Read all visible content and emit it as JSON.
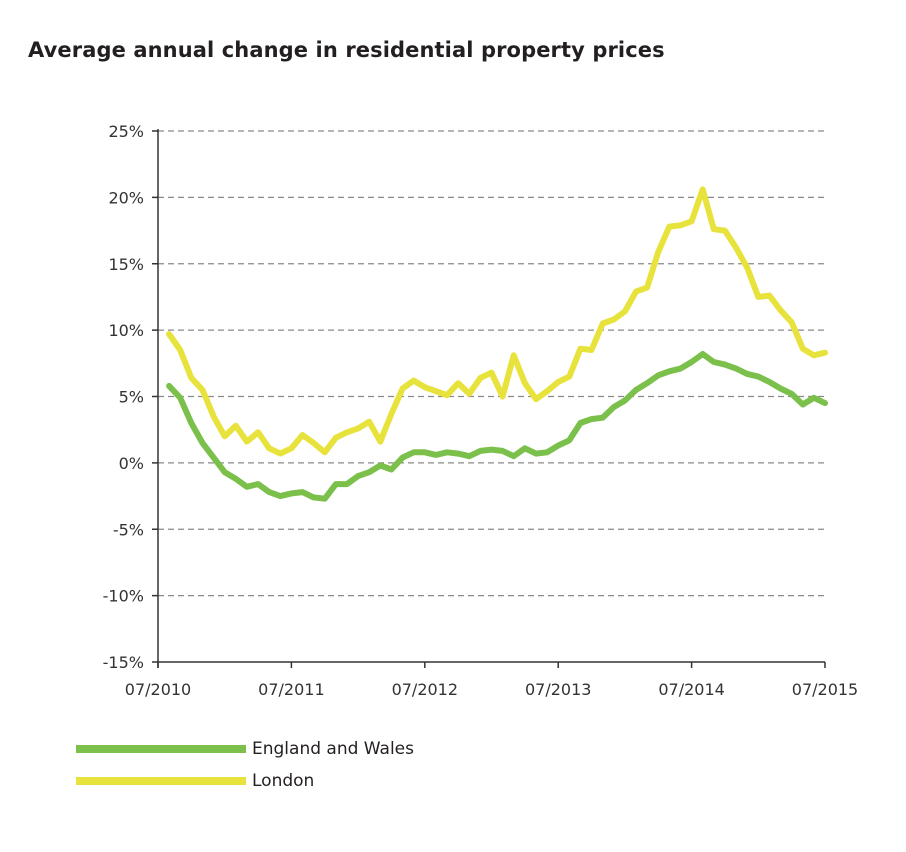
{
  "chart_data": {
    "type": "line",
    "title": "Average annual change in residential property prices",
    "xlabel": "",
    "ylabel": "",
    "ylim": [
      -15,
      25
    ],
    "yticks": [
      -15,
      -10,
      -5,
      0,
      5,
      10,
      15,
      20,
      25
    ],
    "ytick_labels": [
      "-15%",
      "-10%",
      "-5%",
      "0%",
      "5%",
      "10%",
      "15%",
      "20%",
      "25%"
    ],
    "xlim_months": [
      0,
      60
    ],
    "xticks_months": [
      0,
      12,
      24,
      36,
      48,
      60
    ],
    "xtick_labels": [
      "07/2010",
      "07/2011",
      "07/2012",
      "07/2013",
      "07/2014",
      "07/2015"
    ],
    "x_note": "monthly points, months since 07/2010 (1 = 08/2010 ... 60 = 07/2015)",
    "x": [
      1,
      2,
      3,
      4,
      5,
      6,
      7,
      8,
      9,
      10,
      11,
      12,
      13,
      14,
      15,
      16,
      17,
      18,
      19,
      20,
      21,
      22,
      23,
      24,
      25,
      26,
      27,
      28,
      29,
      30,
      31,
      32,
      33,
      34,
      35,
      36,
      37,
      38,
      39,
      40,
      41,
      42,
      43,
      44,
      45,
      46,
      47,
      48,
      49,
      50,
      51,
      52,
      53,
      54,
      55,
      56,
      57,
      58,
      59,
      60
    ],
    "grid": "horizontal-dashed",
    "legend_position": "bottom-left",
    "series": [
      {
        "name": "England and Wales",
        "color": "#7bc04b",
        "values": [
          5.8,
          4.9,
          3.0,
          1.5,
          0.4,
          -0.7,
          -1.2,
          -1.8,
          -1.6,
          -2.2,
          -2.5,
          -2.3,
          -2.2,
          -2.6,
          -2.7,
          -1.6,
          -1.6,
          -1.0,
          -0.7,
          -0.2,
          -0.5,
          0.4,
          0.8,
          0.8,
          0.6,
          0.8,
          0.7,
          0.5,
          0.9,
          1.0,
          0.9,
          0.5,
          1.1,
          0.7,
          0.8,
          1.3,
          1.7,
          3.0,
          3.3,
          3.4,
          4.2,
          4.7,
          5.5,
          6.0,
          6.6,
          6.9,
          7.1,
          7.6,
          8.2,
          7.6,
          7.4,
          7.1,
          6.7,
          6.5,
          6.1,
          5.6,
          5.2,
          4.4,
          4.9,
          4.5
        ]
      },
      {
        "name": "London",
        "color": "#e8e33c",
        "values": [
          9.7,
          8.5,
          6.4,
          5.5,
          3.5,
          2.0,
          2.8,
          1.6,
          2.3,
          1.1,
          0.7,
          1.1,
          2.1,
          1.5,
          0.8,
          1.9,
          2.3,
          2.6,
          3.1,
          1.6,
          3.7,
          5.6,
          6.2,
          5.7,
          5.4,
          5.1,
          6.0,
          5.2,
          6.4,
          6.8,
          5.0,
          8.1,
          6.0,
          4.8,
          5.4,
          6.1,
          6.5,
          8.6,
          8.5,
          10.5,
          10.8,
          11.4,
          12.9,
          13.2,
          15.9,
          17.8,
          17.9,
          18.2,
          20.6,
          17.6,
          17.5,
          16.2,
          14.7,
          12.5,
          12.6,
          11.5,
          10.6,
          8.6,
          8.1,
          8.3
        ]
      }
    ]
  }
}
